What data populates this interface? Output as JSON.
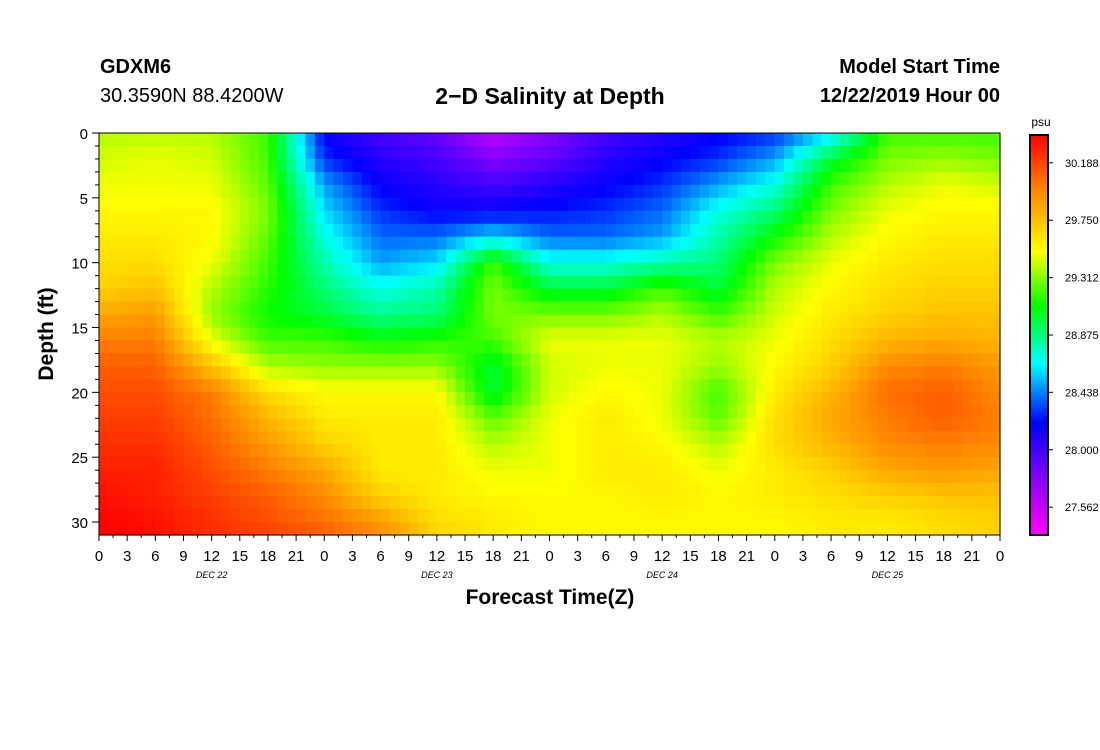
{
  "header": {
    "station": "GDXM6",
    "coordinates": "30.3590N 88.4200W",
    "title": "2−D Salinity at Depth",
    "start_label": "Model Start Time",
    "start_value": "12/22/2019 Hour 00"
  },
  "chart_data": {
    "type": "heatmap",
    "title": "2−D Salinity at Depth",
    "xlabel": "Forecast Time(Z)",
    "ylabel": "Depth (ft)",
    "x_hours": [
      0,
      96
    ],
    "x_tick_step_hours": 3,
    "x_tick_labels": [
      "0",
      "3",
      "6",
      "9",
      "12",
      "15",
      "18",
      "21",
      "0",
      "3",
      "6",
      "9",
      "12",
      "15",
      "18",
      "21",
      "0",
      "3",
      "6",
      "9",
      "12",
      "15",
      "18",
      "21",
      "0",
      "3",
      "6",
      "9",
      "12",
      "15",
      "18",
      "21",
      "0"
    ],
    "date_labels": [
      {
        "hour": 12,
        "label": "DEC 22"
      },
      {
        "hour": 36,
        "label": "DEC 23"
      },
      {
        "hour": 60,
        "label": "DEC 24"
      },
      {
        "hour": 84,
        "label": "DEC 25"
      }
    ],
    "ylim": [
      0,
      31
    ],
    "y_ticks": [
      0,
      5,
      10,
      15,
      20,
      25,
      30
    ],
    "y_inverted": true,
    "colorbar": {
      "unit": "psu",
      "min": 27.35,
      "max": 30.4,
      "ticks": [
        "30.188",
        "29.750",
        "29.312",
        "28.875",
        "28.438",
        "28.000",
        "27.562"
      ],
      "colors": [
        "#ff00ff",
        "#8800ff",
        "#0000ff",
        "#00ffff",
        "#00ff00",
        "#ffff00",
        "#ff8800",
        "#ff0000"
      ]
    },
    "hours": [
      0,
      6,
      12,
      18,
      24,
      30,
      36,
      42,
      48,
      54,
      60,
      66,
      72,
      78,
      84,
      90,
      96
    ],
    "depths": [
      0,
      2,
      4,
      6,
      8,
      10,
      12,
      14,
      16,
      18,
      20,
      22,
      24,
      26,
      28,
      30,
      31
    ],
    "values": [
      [
        29.4,
        29.4,
        29.4,
        29.2,
        28.2,
        28.0,
        27.9,
        27.6,
        27.8,
        28.0,
        28.1,
        28.2,
        28.3,
        28.6,
        29.2,
        29.2,
        29.2
      ],
      [
        29.45,
        29.5,
        29.45,
        29.2,
        28.3,
        28.1,
        28.0,
        27.8,
        27.9,
        28.1,
        28.2,
        28.3,
        28.5,
        29.0,
        29.3,
        29.35,
        29.3
      ],
      [
        29.5,
        29.5,
        29.5,
        29.25,
        28.5,
        28.2,
        28.1,
        28.0,
        28.1,
        28.2,
        28.3,
        28.5,
        28.7,
        29.2,
        29.4,
        29.5,
        29.45
      ],
      [
        29.55,
        29.55,
        29.55,
        29.3,
        28.6,
        28.3,
        28.2,
        28.2,
        28.25,
        28.3,
        28.4,
        28.7,
        28.9,
        29.3,
        29.5,
        29.55,
        29.55
      ],
      [
        29.6,
        29.6,
        29.55,
        29.25,
        28.7,
        28.4,
        28.4,
        28.6,
        28.4,
        28.4,
        28.5,
        28.8,
        29.1,
        29.4,
        29.55,
        29.6,
        29.6
      ],
      [
        29.65,
        29.65,
        29.5,
        29.2,
        28.8,
        28.5,
        28.6,
        29.2,
        28.7,
        28.7,
        28.8,
        28.9,
        29.3,
        29.5,
        29.6,
        29.65,
        29.65
      ],
      [
        29.7,
        29.75,
        29.4,
        29.15,
        28.9,
        28.7,
        28.8,
        29.3,
        29.0,
        29.0,
        29.2,
        29.0,
        29.4,
        29.55,
        29.65,
        29.7,
        29.7
      ],
      [
        29.85,
        29.9,
        29.35,
        29.1,
        29.0,
        28.85,
        28.9,
        29.3,
        29.3,
        29.3,
        29.4,
        29.2,
        29.45,
        29.6,
        29.7,
        29.75,
        29.75
      ],
      [
        30.0,
        30.0,
        29.5,
        29.2,
        29.2,
        29.1,
        29.15,
        29.2,
        29.5,
        29.5,
        29.5,
        29.4,
        29.5,
        29.65,
        29.8,
        29.85,
        29.8
      ],
      [
        30.1,
        30.1,
        29.75,
        29.4,
        29.35,
        29.35,
        29.35,
        29.0,
        29.45,
        29.5,
        29.5,
        29.35,
        29.55,
        29.7,
        29.95,
        30.0,
        29.9
      ],
      [
        30.15,
        30.15,
        30.0,
        29.65,
        29.55,
        29.55,
        29.55,
        29.0,
        29.45,
        29.55,
        29.5,
        29.2,
        29.6,
        29.8,
        30.05,
        30.1,
        29.95
      ],
      [
        30.2,
        30.2,
        30.05,
        29.8,
        29.6,
        29.6,
        29.6,
        29.25,
        29.5,
        29.6,
        29.5,
        29.25,
        29.65,
        29.85,
        30.0,
        30.1,
        30.0
      ],
      [
        30.25,
        30.25,
        30.1,
        29.9,
        29.7,
        29.6,
        29.6,
        29.4,
        29.5,
        29.6,
        29.55,
        29.4,
        29.65,
        29.8,
        29.95,
        30.0,
        29.95
      ],
      [
        30.3,
        30.3,
        30.15,
        30.0,
        29.85,
        29.6,
        29.6,
        29.5,
        29.5,
        29.6,
        29.6,
        29.5,
        29.6,
        29.7,
        29.85,
        29.9,
        29.85
      ],
      [
        30.35,
        30.3,
        30.2,
        30.1,
        29.95,
        29.7,
        29.6,
        29.55,
        29.55,
        29.55,
        29.6,
        29.55,
        29.6,
        29.65,
        29.7,
        29.75,
        29.75
      ],
      [
        30.4,
        30.35,
        30.25,
        30.15,
        30.05,
        29.9,
        29.65,
        29.6,
        29.55,
        29.55,
        29.55,
        29.55,
        29.55,
        29.6,
        29.6,
        29.65,
        29.7
      ],
      [
        30.4,
        30.35,
        30.25,
        30.2,
        30.1,
        29.95,
        29.7,
        29.6,
        29.55,
        29.55,
        29.55,
        29.55,
        29.55,
        29.6,
        29.6,
        29.65,
        29.7
      ]
    ]
  }
}
